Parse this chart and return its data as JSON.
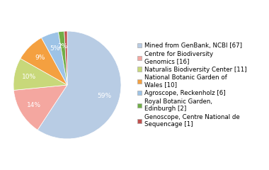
{
  "values": [
    67,
    16,
    11,
    10,
    6,
    2,
    1
  ],
  "colors": [
    "#b8cce4",
    "#f4a7a0",
    "#c8d87a",
    "#f4a040",
    "#9dc3e6",
    "#70ad47",
    "#c0504d"
  ],
  "legend_labels": [
    "Mined from GenBank, NCBI [67]",
    "Centre for Biodiversity\nGenomics [16]",
    "Naturalis Biodiversity Center [11]",
    "National Botanic Garden of\nWales [10]",
    "Agroscope, Reckenholz [6]",
    "Royal Botanic Garden,\nEdinburgh [2]",
    "Genoscope, Centre National de\nSequencage [1]"
  ],
  "figsize": [
    3.8,
    2.4
  ],
  "dpi": 100,
  "background_color": "#ffffff",
  "fontsize": 6.2,
  "pct_fontsize": 6.5
}
